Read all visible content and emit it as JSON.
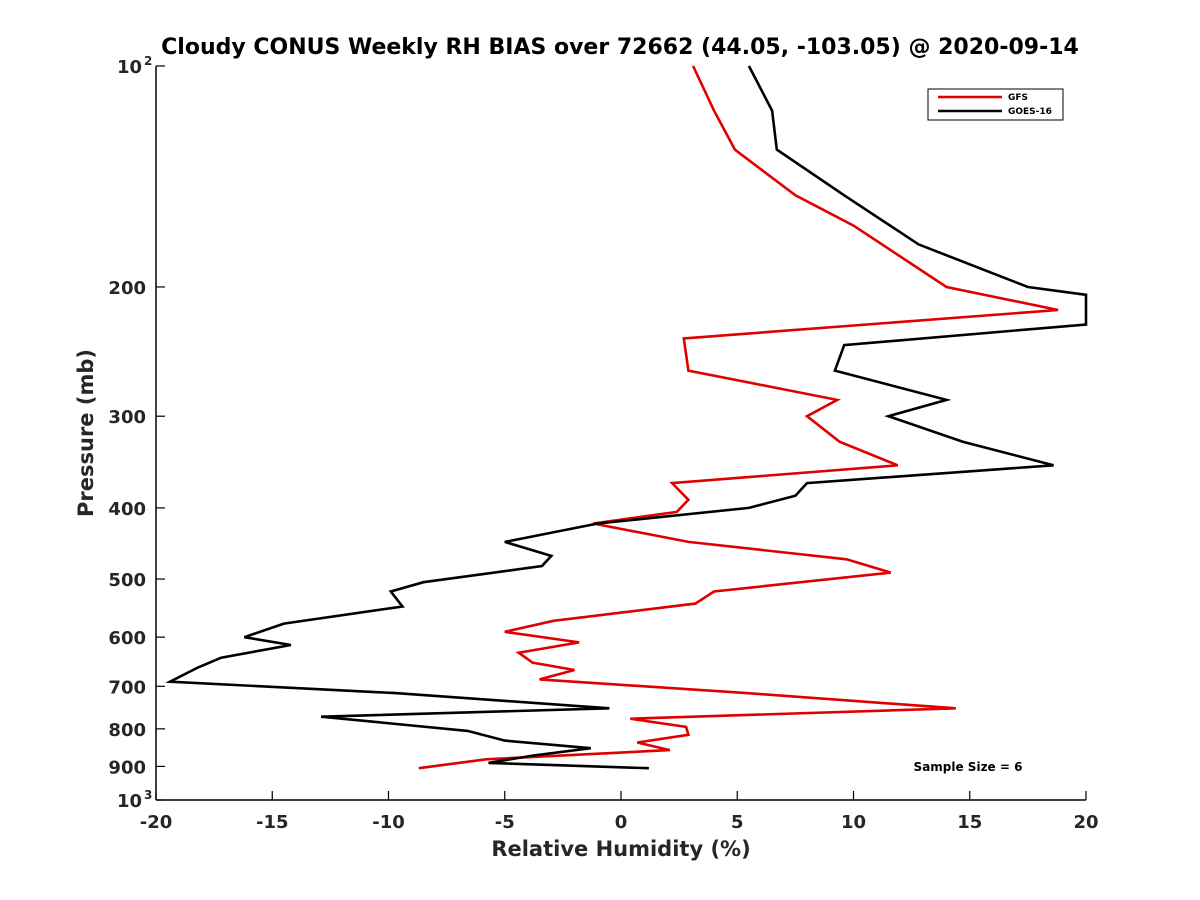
{
  "chart_data": {
    "type": "line",
    "title": "Cloudy CONUS Weekly RH BIAS over 72662 (44.05, -103.05) @ 2020-09-14",
    "xlabel": "Relative Humidity (%)",
    "ylabel": "Pressure (mb)",
    "xlim": [
      -20,
      20
    ],
    "ylim": [
      100,
      1000
    ],
    "y_scale": "log",
    "y_reversed": true,
    "x_ticks": [
      "-20",
      "-15",
      "-10",
      "-5",
      "0",
      "5",
      "10",
      "15",
      "20"
    ],
    "y_ticks": [
      {
        "value": 100,
        "label": "10",
        "sup": "2"
      },
      {
        "value": 200,
        "label": "200"
      },
      {
        "value": 300,
        "label": "300"
      },
      {
        "value": 400,
        "label": "400"
      },
      {
        "value": 500,
        "label": "500"
      },
      {
        "value": 600,
        "label": "600"
      },
      {
        "value": 700,
        "label": "700"
      },
      {
        "value": 800,
        "label": "800"
      },
      {
        "value": 900,
        "label": "900"
      },
      {
        "value": 1000,
        "label": "10",
        "sup": "3"
      }
    ],
    "grid": false,
    "legend_position": "top-right",
    "annotation": "Sample Size = 6",
    "series": [
      {
        "name": "GFS",
        "color": "#e00000",
        "points": [
          [
            3.1,
            100
          ],
          [
            4.0,
            115
          ],
          [
            4.9,
            130
          ],
          [
            7.5,
            150
          ],
          [
            10,
            165
          ],
          [
            14,
            200
          ],
          [
            18.8,
            215
          ],
          [
            2.7,
            235
          ],
          [
            2.9,
            260
          ],
          [
            9.3,
            285
          ],
          [
            8.0,
            300
          ],
          [
            9.4,
            325
          ],
          [
            11.9,
            350
          ],
          [
            2.2,
            370
          ],
          [
            2.9,
            390
          ],
          [
            2.4,
            405
          ],
          [
            -1.2,
            420
          ],
          [
            2.9,
            445
          ],
          [
            9.7,
            470
          ],
          [
            11.6,
            490
          ],
          [
            4.0,
            520
          ],
          [
            3.2,
            540
          ],
          [
            -2.9,
            570
          ],
          [
            -5.0,
            590
          ],
          [
            -1.8,
            610
          ],
          [
            -4.4,
            630
          ],
          [
            -3.8,
            650
          ],
          [
            -2.0,
            665
          ],
          [
            -3.5,
            685
          ],
          [
            5.4,
            715
          ],
          [
            14.4,
            750
          ],
          [
            0.4,
            775
          ],
          [
            2.8,
            795
          ],
          [
            2.9,
            815
          ],
          [
            0.7,
            835
          ],
          [
            2.1,
            855
          ],
          [
            -5.8,
            880
          ],
          [
            -8.7,
            905
          ]
        ]
      },
      {
        "name": "GOES-16",
        "color": "#000000",
        "points": [
          [
            5.5,
            100
          ],
          [
            6.5,
            115
          ],
          [
            6.7,
            130
          ],
          [
            9.6,
            150
          ],
          [
            12.8,
            175
          ],
          [
            17.5,
            200
          ],
          [
            20,
            205
          ],
          [
            20,
            225
          ],
          [
            9.6,
            240
          ],
          [
            9.2,
            260
          ],
          [
            14,
            285
          ],
          [
            11.5,
            300
          ],
          [
            14.7,
            325
          ],
          [
            18.6,
            350
          ],
          [
            8.0,
            370
          ],
          [
            7.5,
            385
          ],
          [
            5.5,
            400
          ],
          [
            -1.0,
            420
          ],
          [
            -5.0,
            445
          ],
          [
            -3.0,
            465
          ],
          [
            -3.4,
            480
          ],
          [
            -8.5,
            505
          ],
          [
            -9.9,
            520
          ],
          [
            -9.4,
            545
          ],
          [
            -14.5,
            575
          ],
          [
            -16.2,
            600
          ],
          [
            -14.2,
            615
          ],
          [
            -17.2,
            640
          ],
          [
            -18.2,
            660
          ],
          [
            -19.4,
            690
          ],
          [
            -9.7,
            715
          ],
          [
            -0.5,
            750
          ],
          [
            -12.9,
            770
          ],
          [
            -6.6,
            805
          ],
          [
            -5.0,
            830
          ],
          [
            -1.3,
            850
          ],
          [
            -3.8,
            870
          ],
          [
            -5.7,
            890
          ],
          [
            1.2,
            905
          ]
        ]
      }
    ]
  }
}
